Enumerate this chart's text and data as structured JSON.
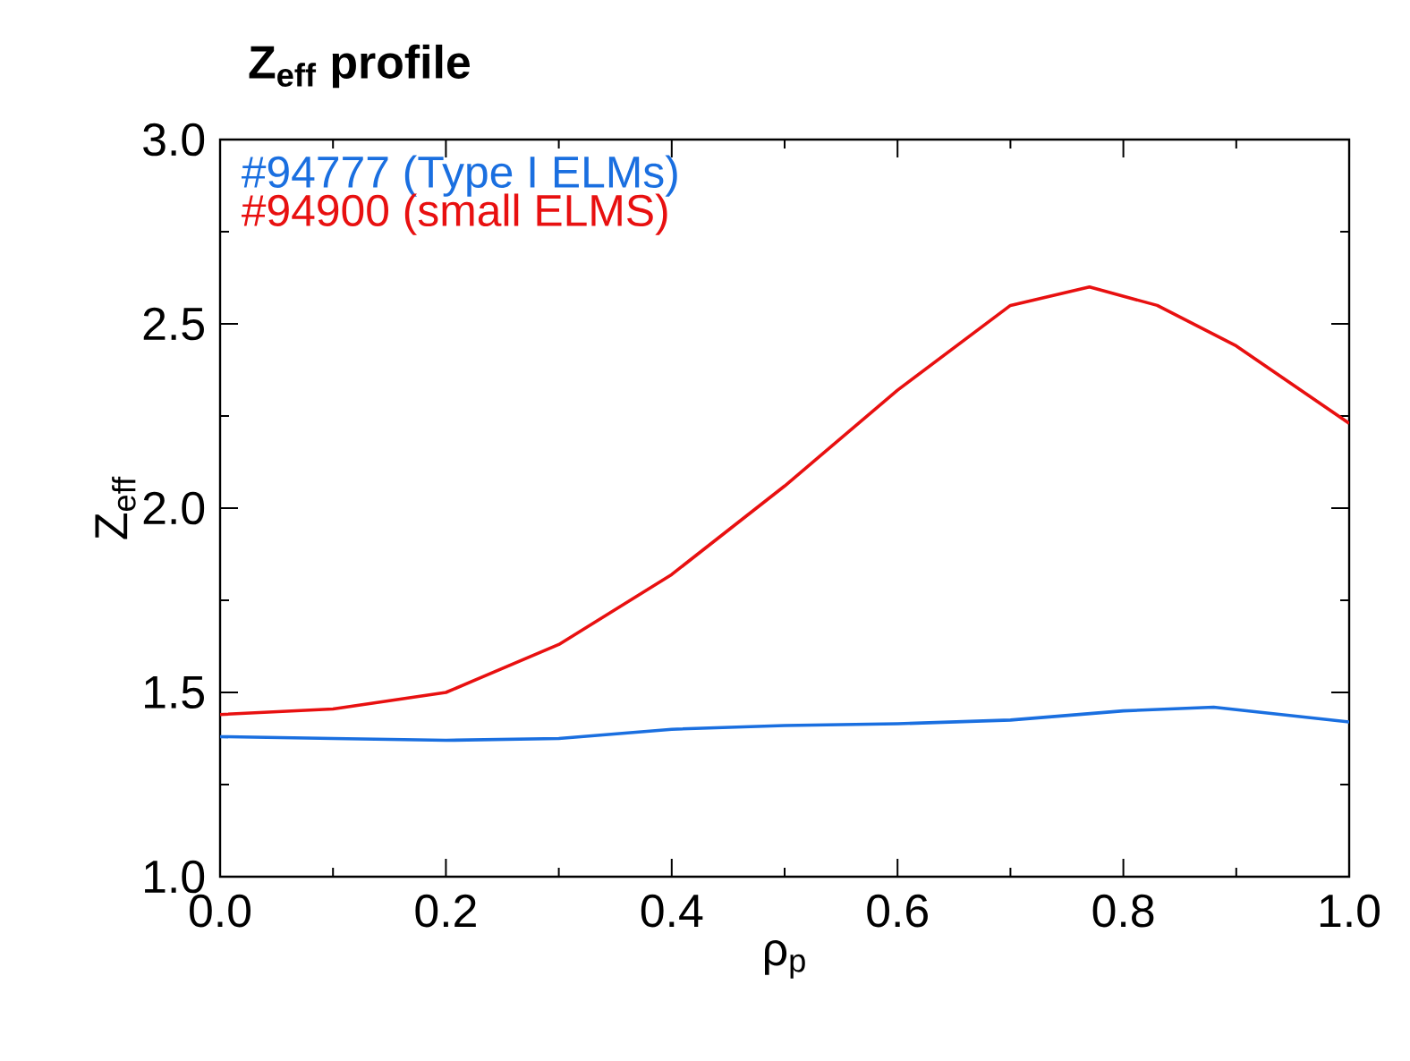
{
  "chart_data": {
    "type": "line",
    "title": "**Z$_{eff}$ profile**",
    "xlabel": "ρ$_{p}$",
    "ylabel": "Z$_{eff}$",
    "legend": "top left",
    "grid": false,
    "marker": "none",
    "line_style": "solid",
    "xlim": [
      0,
      1
    ],
    "ylim": [
      1,
      3
    ],
    "xticks": [
      {
        "value": 0,
        "label": "0.0"
      },
      {
        "value": 0.2,
        "label": "0.2"
      },
      {
        "value": 0.4,
        "label": "0.4"
      },
      {
        "value": 0.6,
        "label": "0.6"
      },
      {
        "value": 0.8,
        "label": "0.8"
      },
      {
        "value": 1,
        "label": "1.0"
      }
    ],
    "yticks": [
      {
        "value": 1,
        "label": "1.0"
      },
      {
        "value": 1.5,
        "label": "1.5"
      },
      {
        "value": 2,
        "label": "2.0"
      },
      {
        "value": 2.5,
        "label": "2.5"
      },
      {
        "value": 3,
        "label": "3.0"
      }
    ],
    "series": [
      {
        "name": "#94777 (Type I ELMs)",
        "color": "#1a6fe0",
        "x": [
          0,
          0.1,
          0.2,
          0.3,
          0.4,
          0.5,
          0.6,
          0.7,
          0.8,
          0.88,
          1.0
        ],
        "values": [
          1.38,
          1.375,
          1.37,
          1.375,
          1.4,
          1.41,
          1.415,
          1.425,
          1.45,
          1.46,
          1.42
        ]
      },
      {
        "name": "#94900 (small ELMS)",
        "color": "#e81010",
        "x": [
          0,
          0.1,
          0.2,
          0.3,
          0.4,
          0.5,
          0.6,
          0.7,
          0.77,
          0.83,
          0.9,
          1.0
        ],
        "values": [
          1.44,
          1.455,
          1.5,
          1.63,
          1.82,
          2.06,
          2.32,
          2.55,
          2.6,
          2.55,
          2.44,
          2.23
        ]
      }
    ]
  }
}
